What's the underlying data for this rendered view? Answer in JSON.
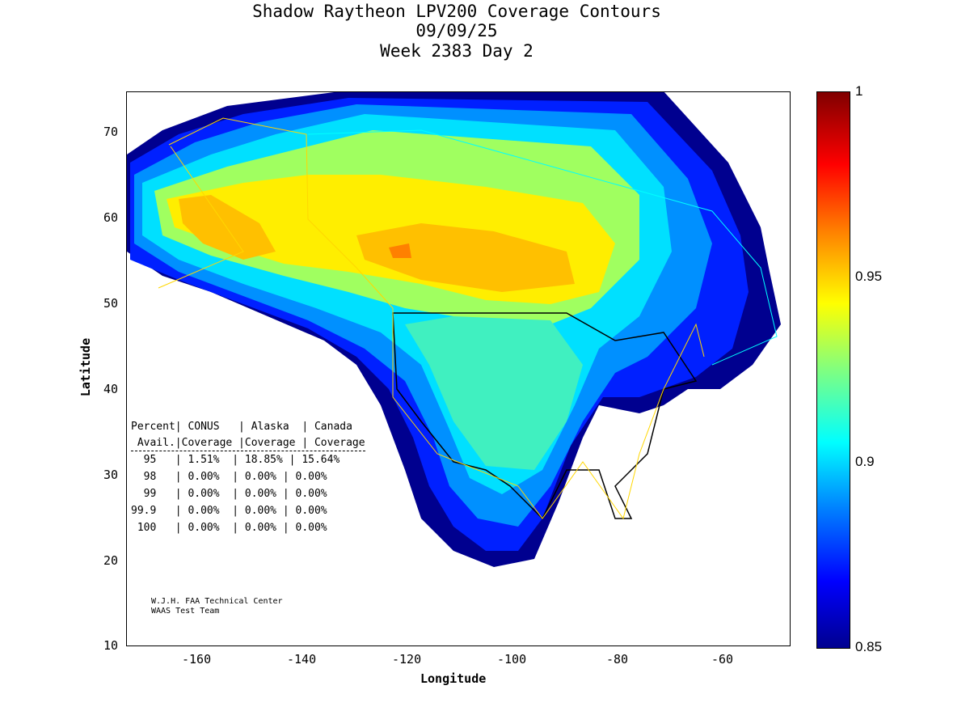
{
  "title": {
    "line1": "Shadow Raytheon LPV200 Coverage Contours",
    "line2": "09/09/25",
    "line3": "Week 2383 Day 2"
  },
  "axes": {
    "xlabel": "Longitude",
    "ylabel": "Latitude",
    "xticks": [
      "-160",
      "-140",
      "-120",
      "-100",
      "-80",
      "-60"
    ],
    "yticks": [
      "10",
      "20",
      "30",
      "40",
      "50",
      "60",
      "70"
    ],
    "xlim": [
      -176,
      -50
    ],
    "ylim": [
      10,
      75
    ]
  },
  "colorbar": {
    "ticks": [
      "0.85",
      "0.9",
      "0.95",
      "1"
    ],
    "range": [
      0.85,
      1
    ],
    "colors": [
      "#00008f",
      "#0000ff",
      "#0080ff",
      "#00ffff",
      "#80ff80",
      "#ffff00",
      "#ff8000",
      "#ff0000",
      "#800000"
    ]
  },
  "table": {
    "header1": "Percent| CONUS   | Alaska  | Canada",
    "header2": " Avail.|Coverage |Coverage | Coverage",
    "rows": [
      "  95   | 1.51%  | 18.85% | 15.64%",
      "  98   | 0.00%  | 0.00% | 0.00%",
      "  99   | 0.00%  | 0.00% | 0.00%",
      "99.9   | 0.00%  | 0.00% | 0.00%",
      " 100   | 0.00%  | 0.00% | 0.00%"
    ]
  },
  "credit": {
    "line1": "W.J.H. FAA Technical Center",
    "line2": "WAAS Test Team"
  }
}
